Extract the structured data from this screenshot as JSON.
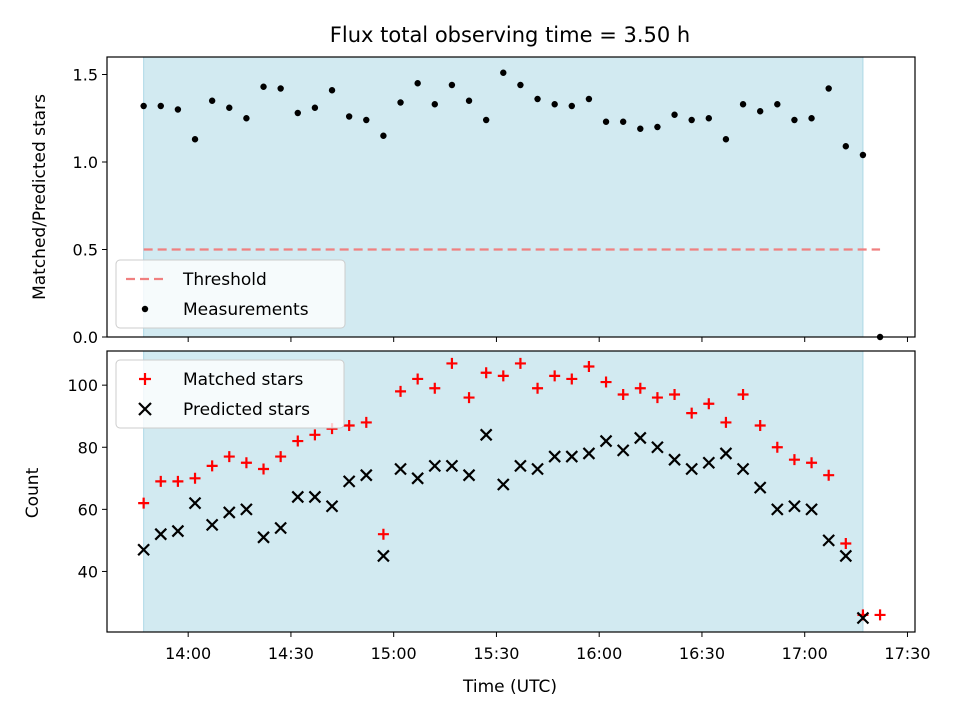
{
  "chart_data": [
    {
      "type": "scatter",
      "title": "Flux total observing time = 3.50 h",
      "ylabel": "Matched/Predicted stars",
      "xlabel": "",
      "ylim": [
        0,
        1.6
      ],
      "yticks": [
        "0.0",
        "0.5",
        "1.0",
        "1.5"
      ],
      "threshold": {
        "name": "Threshold",
        "value": 0.5,
        "start": "13:47",
        "end": "17:22",
        "color": "#f08080"
      },
      "span": {
        "start": "13:47",
        "end": "17:17",
        "color": "#add8e6"
      },
      "legend": "lower-left",
      "series": [
        {
          "name": "Measurements",
          "marker": "dot",
          "color": "#000000",
          "x": [
            "13:47",
            "13:52",
            "13:57",
            "14:02",
            "14:07",
            "14:12",
            "14:17",
            "14:22",
            "14:27",
            "14:32",
            "14:37",
            "14:42",
            "14:47",
            "14:52",
            "14:57",
            "15:02",
            "15:07",
            "15:12",
            "15:17",
            "15:22",
            "15:27",
            "15:32",
            "15:37",
            "15:42",
            "15:47",
            "15:52",
            "15:57",
            "16:02",
            "16:07",
            "16:12",
            "16:17",
            "16:22",
            "16:27",
            "16:32",
            "16:37",
            "16:42",
            "16:47",
            "16:52",
            "16:57",
            "17:02",
            "17:07",
            "17:12",
            "17:17",
            "17:22"
          ],
          "values": [
            1.32,
            1.32,
            1.3,
            1.13,
            1.35,
            1.31,
            1.25,
            1.43,
            1.42,
            1.28,
            1.31,
            1.41,
            1.26,
            1.24,
            1.15,
            1.34,
            1.45,
            1.33,
            1.44,
            1.35,
            1.24,
            1.51,
            1.44,
            1.36,
            1.33,
            1.32,
            1.36,
            1.23,
            1.23,
            1.19,
            1.2,
            1.27,
            1.24,
            1.25,
            1.13,
            1.33,
            1.29,
            1.33,
            1.24,
            1.25,
            1.42,
            1.09,
            1.04,
            0.0
          ]
        }
      ]
    },
    {
      "type": "scatter",
      "title": "",
      "ylabel": "Count",
      "xlabel": "Time (UTC)",
      "ylim": [
        20.5,
        111
      ],
      "yticks": [
        "40",
        "60",
        "80",
        "100"
      ],
      "xticks": [
        "14:00",
        "14:30",
        "15:00",
        "15:30",
        "16:00",
        "16:30",
        "17:00",
        "17:30"
      ],
      "legend": "upper-left",
      "series": [
        {
          "name": "Matched stars",
          "marker": "plus",
          "color": "#ff0000",
          "x": [
            "13:47",
            "13:52",
            "13:57",
            "14:02",
            "14:07",
            "14:12",
            "14:17",
            "14:22",
            "14:27",
            "14:32",
            "14:37",
            "14:42",
            "14:47",
            "14:52",
            "14:57",
            "15:02",
            "15:07",
            "15:12",
            "15:17",
            "15:22",
            "15:27",
            "15:32",
            "15:37",
            "15:42",
            "15:47",
            "15:52",
            "15:57",
            "16:02",
            "16:07",
            "16:12",
            "16:17",
            "16:22",
            "16:27",
            "16:32",
            "16:37",
            "16:42",
            "16:47",
            "16:52",
            "16:57",
            "17:02",
            "17:07",
            "17:12",
            "17:17",
            "17:22"
          ],
          "values": [
            62,
            69,
            69,
            70,
            74,
            77,
            75,
            73,
            77,
            82,
            84,
            86,
            87,
            88,
            52,
            98,
            102,
            99,
            107,
            96,
            104,
            103,
            107,
            99,
            103,
            102,
            106,
            101,
            97,
            99,
            96,
            97,
            91,
            94,
            88,
            97,
            87,
            80,
            76,
            75,
            71,
            49,
            26,
            26
          ]
        },
        {
          "name": "Predicted stars",
          "marker": "x",
          "color": "#000000",
          "x": [
            "13:47",
            "13:52",
            "13:57",
            "14:02",
            "14:07",
            "14:12",
            "14:17",
            "14:22",
            "14:27",
            "14:32",
            "14:37",
            "14:42",
            "14:47",
            "14:52",
            "14:57",
            "15:02",
            "15:07",
            "15:12",
            "15:17",
            "15:22",
            "15:27",
            "15:32",
            "15:37",
            "15:42",
            "15:47",
            "15:52",
            "15:57",
            "16:02",
            "16:07",
            "16:12",
            "16:17",
            "16:22",
            "16:27",
            "16:32",
            "16:37",
            "16:42",
            "16:47",
            "16:52",
            "16:57",
            "17:02",
            "17:07",
            "17:12",
            "17:17"
          ],
          "values": [
            47,
            52,
            53,
            62,
            55,
            59,
            60,
            51,
            54,
            64,
            64,
            61,
            69,
            71,
            45,
            73,
            70,
            74,
            74,
            71,
            84,
            68,
            74,
            73,
            77,
            77,
            78,
            82,
            79,
            83,
            80,
            76,
            73,
            75,
            78,
            73,
            67,
            60,
            61,
            60,
            50,
            45,
            25
          ]
        }
      ]
    }
  ]
}
